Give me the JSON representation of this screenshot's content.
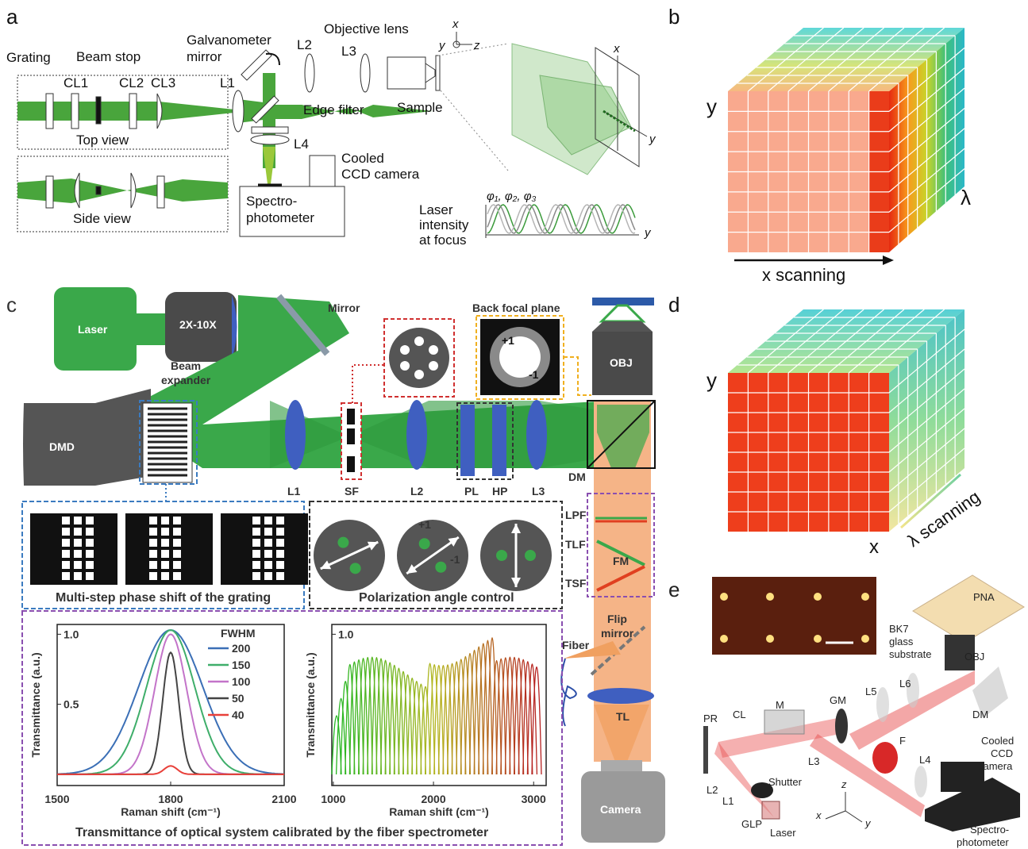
{
  "panel_a": {
    "labels": [
      "a",
      "Grating",
      "Beam stop",
      "CL1",
      "CL2",
      "CL3",
      "Galvanometer",
      "mirror",
      "L1",
      "L2",
      "L3",
      "Objective lens",
      "Edge filter",
      "Sample",
      "Top view",
      "Side view",
      "L4",
      "Cooled",
      "CCD camera",
      "Spectro-",
      "photometer",
      "x",
      "y",
      "z",
      "x",
      "y",
      "Laser",
      "intensity",
      "at focus",
      "φ₁, φ₂, φ₃",
      "y"
    ]
  },
  "panel_b": {
    "labels": [
      "b",
      "y",
      "λ",
      "x scanning"
    ]
  },
  "panel_d": {
    "labels": [
      "d",
      "y",
      "x",
      "λ scanning"
    ]
  },
  "panel_c": {
    "labels": [
      "c",
      "Laser",
      "2X-10X",
      "Beam",
      "expander",
      "Mirror",
      "Back focal plane",
      "+1",
      "-1",
      "OBJ",
      "DMD",
      "L1",
      "SF",
      "L2",
      "PL",
      "HP",
      "L3",
      "DM",
      "LPF",
      "TLF",
      "TSF",
      "FM",
      "Flip",
      "mirror",
      "Fiber",
      "TL",
      "Camera",
      "+1",
      "-1",
      "Multi-step phase shift of the grating",
      "Polarization angle control",
      "Transmittance of optical system calibrated by the fiber spectrometer"
    ]
  },
  "plot_left": {
    "xlabel": "Raman shift (cm⁻¹)",
    "ylabel": "Transmittance (a.u.)",
    "xlim": [
      1500,
      2100
    ],
    "ylim": [
      -0.08,
      1.07
    ],
    "xticks": [
      1500,
      1800,
      2100
    ],
    "yticks": [
      0.5,
      {
        "value": 1,
        "label": "1.0"
      }
    ],
    "legend_title": "FWHM",
    "series": [
      {
        "name": "200",
        "color": "#3b6fb6",
        "values": [
          1.03
        ]
      },
      {
        "name": "150",
        "color": "#3fae6a",
        "values": [
          1.03
        ]
      },
      {
        "name": "100",
        "color": "#c374c9",
        "values": [
          1.0
        ]
      },
      {
        "name": "50",
        "color": "#444444",
        "values": [
          0.87
        ]
      },
      {
        "name": "40",
        "color": "#e8403a",
        "values": [
          0.06
        ]
      }
    ]
  },
  "plot_right": {
    "xlabel": "Raman shift (cm⁻¹)",
    "ylabel": "Transmittance (a.u.)",
    "xlim": [
      985,
      3125
    ],
    "ylim": [
      -0.08,
      1.07
    ],
    "xticks": [
      1000,
      2000,
      3000
    ],
    "yticks": [
      {
        "value": 1,
        "label": "1.0"
      }
    ]
  },
  "panel_e": {
    "labels": [
      "e",
      "PNA",
      "BK7",
      "glass",
      "substrate",
      "OBJ",
      "DM",
      "L6",
      "L5",
      "GM",
      "M",
      "CL",
      "PR",
      "L2",
      "L1",
      "Shutter",
      "GLP",
      "Laser",
      "L3",
      "F",
      "L4",
      "Cooled",
      "CCD",
      "camera",
      "Spectro-",
      "photometer",
      "z",
      "x",
      "y"
    ]
  }
}
